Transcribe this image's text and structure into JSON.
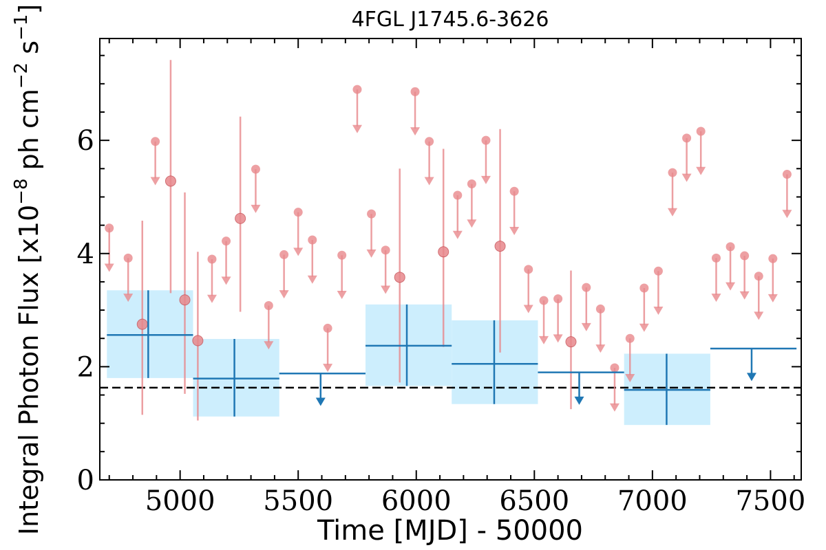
{
  "chart_data": {
    "type": "scatter",
    "title": "4FGL J1745.6-3626",
    "xlabel": "Time [MJD] - 50000",
    "ylabel": "Integral Photon Flux [x10",
    "ylabel_exp1": "−8",
    "ylabel_mid": " ph cm",
    "ylabel_exp2": "−2",
    "ylabel_mid2": " s",
    "ylabel_exp3": "−1",
    "ylabel_end": "]",
    "xlim": [
      4660,
      7630
    ],
    "ylim": [
      0,
      7.8
    ],
    "xticks": [
      5000,
      5500,
      6000,
      6500,
      7000,
      7500
    ],
    "yticks": [
      0,
      2,
      4,
      6
    ],
    "reference_line": 1.63,
    "colors": {
      "short_bin": "#e8888c",
      "long_bin": "#1f77b4",
      "long_bin_band": "#cdeefd",
      "reference_line": "#000000"
    },
    "series": [
      {
        "points": [
          {
            "x": 4840,
            "y": 2.75,
            "lo": 1.15,
            "hi": 4.58
          },
          {
            "x": 4960,
            "y": 5.28,
            "lo": 3.3,
            "hi": 7.42
          },
          {
            "x": 5020,
            "y": 3.18,
            "lo": 1.52,
            "hi": 5.08
          },
          {
            "x": 5075,
            "y": 2.46,
            "lo": 1.05,
            "hi": 4.03
          },
          {
            "x": 5255,
            "y": 4.62,
            "lo": 2.97,
            "hi": 6.42
          },
          {
            "x": 5930,
            "y": 3.58,
            "lo": 1.72,
            "hi": 5.5
          },
          {
            "x": 6115,
            "y": 4.03,
            "lo": 2.35,
            "hi": 5.85
          },
          {
            "x": 6355,
            "y": 4.13,
            "lo": 2.25,
            "hi": 6.2
          },
          {
            "x": 6655,
            "y": 2.44,
            "lo": 1.25,
            "hi": 3.7
          }
        ],
        "upper_limits": [
          {
            "x": 4700,
            "y": 4.45
          },
          {
            "x": 4780,
            "y": 3.92
          },
          {
            "x": 4895,
            "y": 5.98
          },
          {
            "x": 5135,
            "y": 3.9
          },
          {
            "x": 5195,
            "y": 4.22
          },
          {
            "x": 5320,
            "y": 5.49
          },
          {
            "x": 5375,
            "y": 3.08
          },
          {
            "x": 5440,
            "y": 3.98
          },
          {
            "x": 5500,
            "y": 4.73
          },
          {
            "x": 5560,
            "y": 4.24
          },
          {
            "x": 5625,
            "y": 2.68
          },
          {
            "x": 5685,
            "y": 3.97
          },
          {
            "x": 5750,
            "y": 6.9
          },
          {
            "x": 5810,
            "y": 4.7
          },
          {
            "x": 5870,
            "y": 4.06
          },
          {
            "x": 5995,
            "y": 6.86
          },
          {
            "x": 6055,
            "y": 5.98
          },
          {
            "x": 6175,
            "y": 5.03
          },
          {
            "x": 6235,
            "y": 5.23
          },
          {
            "x": 6295,
            "y": 6.0
          },
          {
            "x": 6415,
            "y": 5.1
          },
          {
            "x": 6475,
            "y": 3.72
          },
          {
            "x": 6540,
            "y": 3.17
          },
          {
            "x": 6600,
            "y": 3.2
          },
          {
            "x": 6720,
            "y": 3.4
          },
          {
            "x": 6780,
            "y": 3.02
          },
          {
            "x": 6840,
            "y": 1.98
          },
          {
            "x": 6905,
            "y": 2.5
          },
          {
            "x": 6965,
            "y": 3.39
          },
          {
            "x": 7025,
            "y": 3.69
          },
          {
            "x": 7085,
            "y": 5.43
          },
          {
            "x": 7145,
            "y": 6.04
          },
          {
            "x": 7205,
            "y": 6.16
          },
          {
            "x": 7270,
            "y": 3.92
          },
          {
            "x": 7330,
            "y": 4.12
          },
          {
            "x": 7390,
            "y": 3.96
          },
          {
            "x": 7450,
            "y": 3.6
          },
          {
            "x": 7510,
            "y": 3.91
          },
          {
            "x": 7570,
            "y": 5.4
          }
        ]
      },
      {
        "points": [
          {
            "x0": 4690,
            "x1": 5055,
            "xc": 4865,
            "y": 2.56,
            "lo": 1.8,
            "hi": 3.35
          },
          {
            "x0": 5055,
            "x1": 5420,
            "xc": 5230,
            "y": 1.79,
            "lo": 1.12,
            "hi": 2.49
          },
          {
            "x0": 5785,
            "x1": 6150,
            "xc": 5960,
            "y": 2.37,
            "lo": 1.66,
            "hi": 3.1
          },
          {
            "x0": 6150,
            "x1": 6515,
            "xc": 6330,
            "y": 2.05,
            "lo": 1.34,
            "hi": 2.82
          },
          {
            "x0": 6880,
            "x1": 7245,
            "xc": 7060,
            "y": 1.59,
            "lo": 0.97,
            "hi": 2.23
          }
        ],
        "upper_limits": [
          {
            "x0": 5420,
            "x1": 5785,
            "xc": 5595,
            "y": 1.88
          },
          {
            "x0": 6515,
            "x1": 6880,
            "xc": 6690,
            "y": 1.9
          },
          {
            "x0": 7245,
            "x1": 7610,
            "xc": 7420,
            "y": 2.32
          }
        ]
      }
    ]
  }
}
